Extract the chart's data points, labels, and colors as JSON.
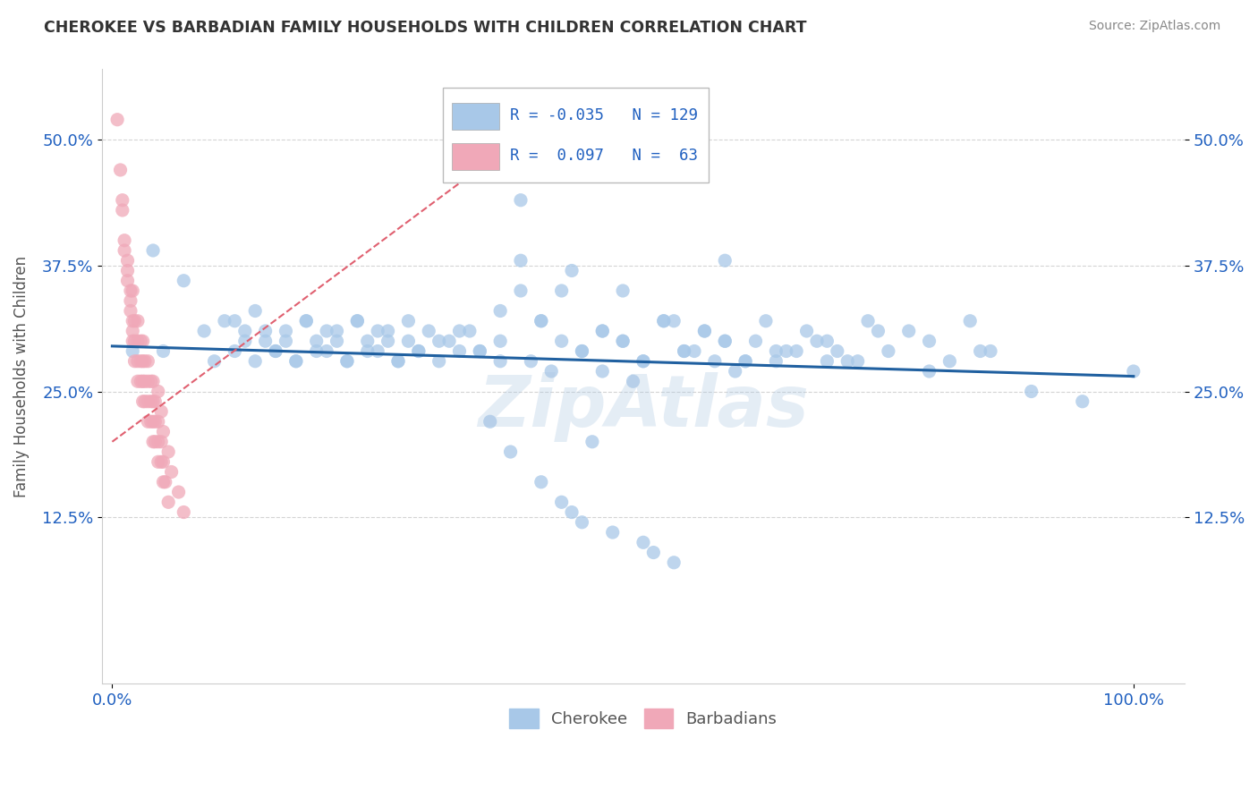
{
  "title": "CHEROKEE VS BARBADIAN FAMILY HOUSEHOLDS WITH CHILDREN CORRELATION CHART",
  "source": "Source: ZipAtlas.com",
  "ylabel": "Family Households with Children",
  "yticks": [
    "12.5%",
    "25.0%",
    "37.5%",
    "50.0%"
  ],
  "ytick_vals": [
    0.125,
    0.25,
    0.375,
    0.5
  ],
  "ylim": [
    -0.04,
    0.57
  ],
  "xlim": [
    -0.01,
    1.05
  ],
  "cherokee_R": "-0.035",
  "cherokee_N": "129",
  "barbadian_R": "0.097",
  "barbadian_N": "63",
  "cherokee_color": "#a8c8e8",
  "barbadian_color": "#f0a8b8",
  "cherokee_line_color": "#2060a0",
  "barbadian_line_color": "#e06070",
  "legend_text_color": "#2060c0",
  "watermark": "ZipAtlas",
  "background_color": "#ffffff",
  "grid_color": "#d0d0d0",
  "title_color": "#333333",
  "cherokee_x": [
    0.02,
    0.04,
    0.05,
    0.07,
    0.09,
    0.1,
    0.11,
    0.12,
    0.13,
    0.14,
    0.15,
    0.16,
    0.17,
    0.18,
    0.19,
    0.2,
    0.21,
    0.22,
    0.23,
    0.24,
    0.25,
    0.26,
    0.27,
    0.28,
    0.29,
    0.3,
    0.31,
    0.32,
    0.33,
    0.34,
    0.12,
    0.13,
    0.14,
    0.15,
    0.16,
    0.17,
    0.18,
    0.19,
    0.2,
    0.21,
    0.22,
    0.23,
    0.24,
    0.25,
    0.26,
    0.27,
    0.28,
    0.29,
    0.3,
    0.32,
    0.34,
    0.36,
    0.38,
    0.4,
    0.42,
    0.44,
    0.46,
    0.48,
    0.5,
    0.52,
    0.54,
    0.56,
    0.58,
    0.6,
    0.62,
    0.38,
    0.4,
    0.42,
    0.44,
    0.46,
    0.48,
    0.5,
    0.52,
    0.54,
    0.56,
    0.58,
    0.6,
    0.62,
    0.64,
    0.66,
    0.68,
    0.7,
    0.72,
    0.74,
    0.76,
    0.78,
    0.8,
    0.82,
    0.84,
    0.86,
    0.4,
    0.45,
    0.5,
    0.55,
    0.6,
    0.65,
    0.7,
    0.75,
    0.8,
    0.85,
    0.9,
    0.95,
    1.0,
    0.35,
    0.36,
    0.37,
    0.38,
    0.39,
    0.41,
    0.42,
    0.43,
    0.44,
    0.45,
    0.46,
    0.47,
    0.48,
    0.49,
    0.51,
    0.52,
    0.53,
    0.55,
    0.57,
    0.59,
    0.61,
    0.63,
    0.65,
    0.67,
    0.69,
    0.71,
    0.73
  ],
  "cherokee_y": [
    0.29,
    0.39,
    0.29,
    0.36,
    0.31,
    0.28,
    0.32,
    0.29,
    0.31,
    0.33,
    0.3,
    0.29,
    0.31,
    0.28,
    0.32,
    0.3,
    0.29,
    0.31,
    0.28,
    0.32,
    0.3,
    0.29,
    0.31,
    0.28,
    0.3,
    0.29,
    0.31,
    0.28,
    0.3,
    0.29,
    0.32,
    0.3,
    0.28,
    0.31,
    0.29,
    0.3,
    0.28,
    0.32,
    0.29,
    0.31,
    0.3,
    0.28,
    0.32,
    0.29,
    0.31,
    0.3,
    0.28,
    0.32,
    0.29,
    0.3,
    0.31,
    0.29,
    0.3,
    0.44,
    0.32,
    0.35,
    0.29,
    0.31,
    0.3,
    0.28,
    0.32,
    0.29,
    0.31,
    0.3,
    0.28,
    0.33,
    0.35,
    0.32,
    0.3,
    0.29,
    0.31,
    0.3,
    0.28,
    0.32,
    0.29,
    0.31,
    0.3,
    0.28,
    0.32,
    0.29,
    0.31,
    0.3,
    0.28,
    0.32,
    0.29,
    0.31,
    0.3,
    0.28,
    0.32,
    0.29,
    0.38,
    0.37,
    0.35,
    0.32,
    0.38,
    0.29,
    0.28,
    0.31,
    0.27,
    0.29,
    0.25,
    0.24,
    0.27,
    0.31,
    0.29,
    0.22,
    0.28,
    0.19,
    0.28,
    0.16,
    0.27,
    0.14,
    0.13,
    0.12,
    0.2,
    0.27,
    0.11,
    0.26,
    0.1,
    0.09,
    0.08,
    0.29,
    0.28,
    0.27,
    0.3,
    0.28,
    0.29,
    0.3,
    0.29,
    0.28
  ],
  "barbadian_x": [
    0.005,
    0.008,
    0.01,
    0.012,
    0.015,
    0.018,
    0.02,
    0.01,
    0.012,
    0.015,
    0.018,
    0.02,
    0.022,
    0.025,
    0.015,
    0.018,
    0.02,
    0.022,
    0.025,
    0.028,
    0.03,
    0.02,
    0.022,
    0.025,
    0.028,
    0.03,
    0.032,
    0.035,
    0.025,
    0.028,
    0.03,
    0.032,
    0.035,
    0.038,
    0.04,
    0.03,
    0.032,
    0.035,
    0.038,
    0.04,
    0.042,
    0.045,
    0.035,
    0.038,
    0.04,
    0.042,
    0.045,
    0.048,
    0.05,
    0.04,
    0.042,
    0.045,
    0.048,
    0.05,
    0.052,
    0.055,
    0.045,
    0.048,
    0.05,
    0.055,
    0.058,
    0.065,
    0.07
  ],
  "barbadian_y": [
    0.52,
    0.47,
    0.44,
    0.4,
    0.37,
    0.34,
    0.31,
    0.43,
    0.39,
    0.36,
    0.33,
    0.3,
    0.28,
    0.26,
    0.38,
    0.35,
    0.32,
    0.3,
    0.28,
    0.26,
    0.24,
    0.35,
    0.32,
    0.3,
    0.28,
    0.26,
    0.24,
    0.22,
    0.32,
    0.3,
    0.28,
    0.26,
    0.24,
    0.22,
    0.2,
    0.3,
    0.28,
    0.26,
    0.24,
    0.22,
    0.2,
    0.18,
    0.28,
    0.26,
    0.24,
    0.22,
    0.2,
    0.18,
    0.16,
    0.26,
    0.24,
    0.22,
    0.2,
    0.18,
    0.16,
    0.14,
    0.25,
    0.23,
    0.21,
    0.19,
    0.17,
    0.15,
    0.13
  ],
  "cherokee_line_x": [
    0.0,
    1.0
  ],
  "cherokee_line_y": [
    0.295,
    0.265
  ],
  "barbadian_line_x": [
    0.0,
    0.45
  ],
  "barbadian_line_y": [
    0.2,
    0.54
  ]
}
